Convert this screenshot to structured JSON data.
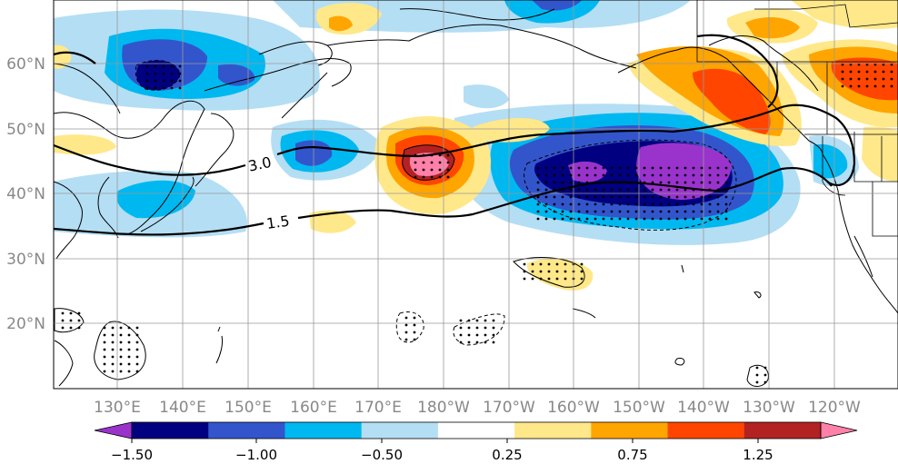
{
  "map": {
    "latitude_labels": [
      "60°N",
      "50°N",
      "40°N",
      "30°N",
      "20°N"
    ],
    "longitude_labels": [
      "130°E",
      "140°E",
      "150°E",
      "160°E",
      "170°E",
      "180°W",
      "170°W",
      "160°W",
      "150°W",
      "140°W",
      "130°W",
      "120°W"
    ],
    "contour_labels": [
      "3.0",
      "1.5"
    ]
  },
  "colorbar": {
    "tick_labels": [
      "−1.50",
      "−1.00",
      "−0.50",
      "0.25",
      "0.75",
      "1.25"
    ],
    "colors": [
      "#9933cc",
      "#000080",
      "#3355cc",
      "#00b8f0",
      "#b4def4",
      "#ffffff",
      "#ffe88a",
      "#ffa500",
      "#ff4500",
      "#b22222",
      "#ff80a8"
    ]
  }
}
